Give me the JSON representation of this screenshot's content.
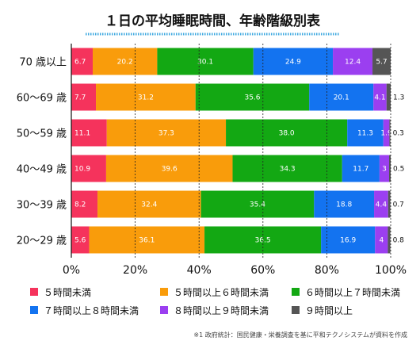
{
  "chart_data": {
    "type": "bar",
    "orientation": "horizontal",
    "stacked": true,
    "title": "１日の平均睡眠時間、年齢階級別表",
    "categories": [
      "70 歳以上",
      "60～69 歳",
      "50～59 歳",
      "40～49 歳",
      "30～39 歳",
      "20～29 歳"
    ],
    "series": [
      {
        "name": "５時間未満",
        "color": "#f5335c",
        "values": [
          6.7,
          7.7,
          11.1,
          10.9,
          8.2,
          5.6
        ]
      },
      {
        "name": "５時間以上６時間未満",
        "color": "#f99c0b",
        "values": [
          20.2,
          31.2,
          37.3,
          39.6,
          32.4,
          36.1
        ]
      },
      {
        "name": "６時間以上７時間未満",
        "color": "#13a813",
        "values": [
          30.1,
          35.6,
          38.0,
          34.3,
          35.4,
          36.5
        ]
      },
      {
        "name": "７時間以上８時間未満",
        "color": "#1373f0",
        "values": [
          24.9,
          20.1,
          11.3,
          11.7,
          18.8,
          16.9
        ]
      },
      {
        "name": "８時間以上９時間未満",
        "color": "#9b3ff0",
        "values": [
          12.4,
          4.1,
          1.9,
          3,
          4.4,
          4
        ]
      },
      {
        "name": "９時間以上",
        "color": "#555555",
        "values": [
          5.7,
          1.3,
          0.3,
          0.5,
          0.7,
          0.8
        ]
      }
    ],
    "value_labels": [
      [
        "6.7",
        "20.2",
        "30.1",
        "24.9",
        "12.4",
        "5.7"
      ],
      [
        "7.7",
        "31.2",
        "35.6",
        "20.1",
        "4.1",
        "1.3"
      ],
      [
        "11.1",
        "37.3",
        "38.0",
        "11.3",
        "1.9",
        "0.3"
      ],
      [
        "10.9",
        "39.6",
        "34.3",
        "11.7",
        "3",
        "0.5"
      ],
      [
        "8.2",
        "32.4",
        "35.4",
        "18.8",
        "4.4",
        "0.7"
      ],
      [
        "5.6",
        "36.1",
        "36.5",
        "16.9",
        "4",
        "0.8"
      ]
    ],
    "xlim": [
      0,
      100
    ],
    "xticks": [
      "0%",
      "20%",
      "40%",
      "60%",
      "80%",
      "100%"
    ],
    "grid": true,
    "legend": "bottom"
  },
  "footnote": "※1 政府統計：国民健康・栄養調査を基に平和テクノシステムが資料を作成"
}
